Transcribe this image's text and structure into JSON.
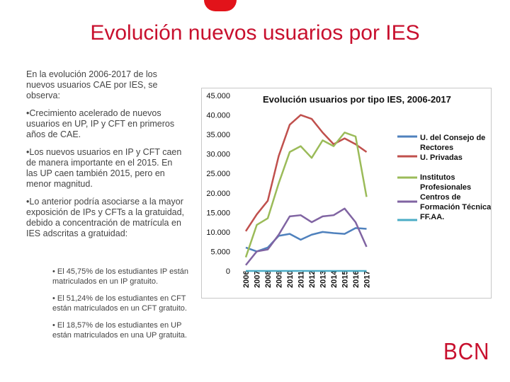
{
  "slide": {
    "title": "Evolución nuevos usuarios por IES",
    "intro": "En la evolución  2006-2017 de los nuevos usuarios CAE por IES, se observa:",
    "points": [
      "•Crecimiento acelerado de nuevos usuarios en UP, IP y CFT en primeros años de CAE.",
      "•Los nuevos usuarios en IP y CFT caen de manera importante en el 2015. En las UP caen también 2015, pero en menor magnitud.",
      "•Lo anterior podría asociarse a la mayor exposición de IPs y CFTs a la gratuidad, debido a concentración de matrícula en IES adscritas a gratuidad:"
    ],
    "subpoints": [
      "• El 45,75% de los estudiantes IP están matriculados en un IP gratuito.",
      "• El 51,24% de los estudiantes en CFT están matriculados en un CFT gratuito.",
      "• El 18,57% de los estudiantes  en UP están matriculados en una UP gratuita."
    ],
    "logo_text": "BCN"
  },
  "colors": {
    "title": "#c8102e",
    "consejo": "#4f81bd",
    "privadas": "#c0504d",
    "ip": "#9bbb59",
    "cft": "#8064a2",
    "ffaa": "#4bacc6"
  },
  "chart_data": {
    "type": "line",
    "title": "Evolución usuarios por tipo IES, 2006-2017",
    "x": [
      "2006",
      "2007",
      "2008",
      "2009",
      "2010",
      "2011",
      "2012",
      "2013",
      "2014",
      "2015",
      "2016",
      "2017"
    ],
    "ylim": [
      0,
      45000
    ],
    "yticks": [
      0,
      5000,
      10000,
      15000,
      20000,
      25000,
      30000,
      35000,
      40000,
      45000
    ],
    "ytick_labels": [
      "0",
      "5.000",
      "10.000",
      "15.000",
      "20.000",
      "25.000",
      "30.000",
      "35.000",
      "40.000",
      "45.000"
    ],
    "legend_position": "right",
    "series": [
      {
        "name": "U. del Consejo de Rectores",
        "color_key": "consejo",
        "values": [
          6000,
          5000,
          6000,
          9000,
          9500,
          8000,
          9300,
          10000,
          9700,
          9500,
          11000,
          10800
        ]
      },
      {
        "name": "U. Privadas",
        "color_key": "privadas",
        "values": [
          10200,
          14500,
          18000,
          29500,
          37500,
          40000,
          39000,
          35500,
          32500,
          34000,
          32500,
          30500
        ]
      },
      {
        "name": "Institutos Profesionales",
        "color_key": "ip",
        "values": [
          3500,
          11800,
          13500,
          22500,
          30500,
          32000,
          29000,
          33500,
          32000,
          35500,
          34500,
          19000
        ]
      },
      {
        "name": "Centros de Formación Técnica",
        "color_key": "cft",
        "values": [
          1500,
          5000,
          5500,
          9300,
          14000,
          14300,
          12500,
          14000,
          14300,
          16000,
          12500,
          6200
        ]
      },
      {
        "name": "FF.AA.",
        "color_key": "ffaa",
        "values": [
          0,
          0,
          0,
          0,
          0,
          0,
          0,
          0,
          0,
          0,
          0,
          0
        ]
      }
    ]
  }
}
